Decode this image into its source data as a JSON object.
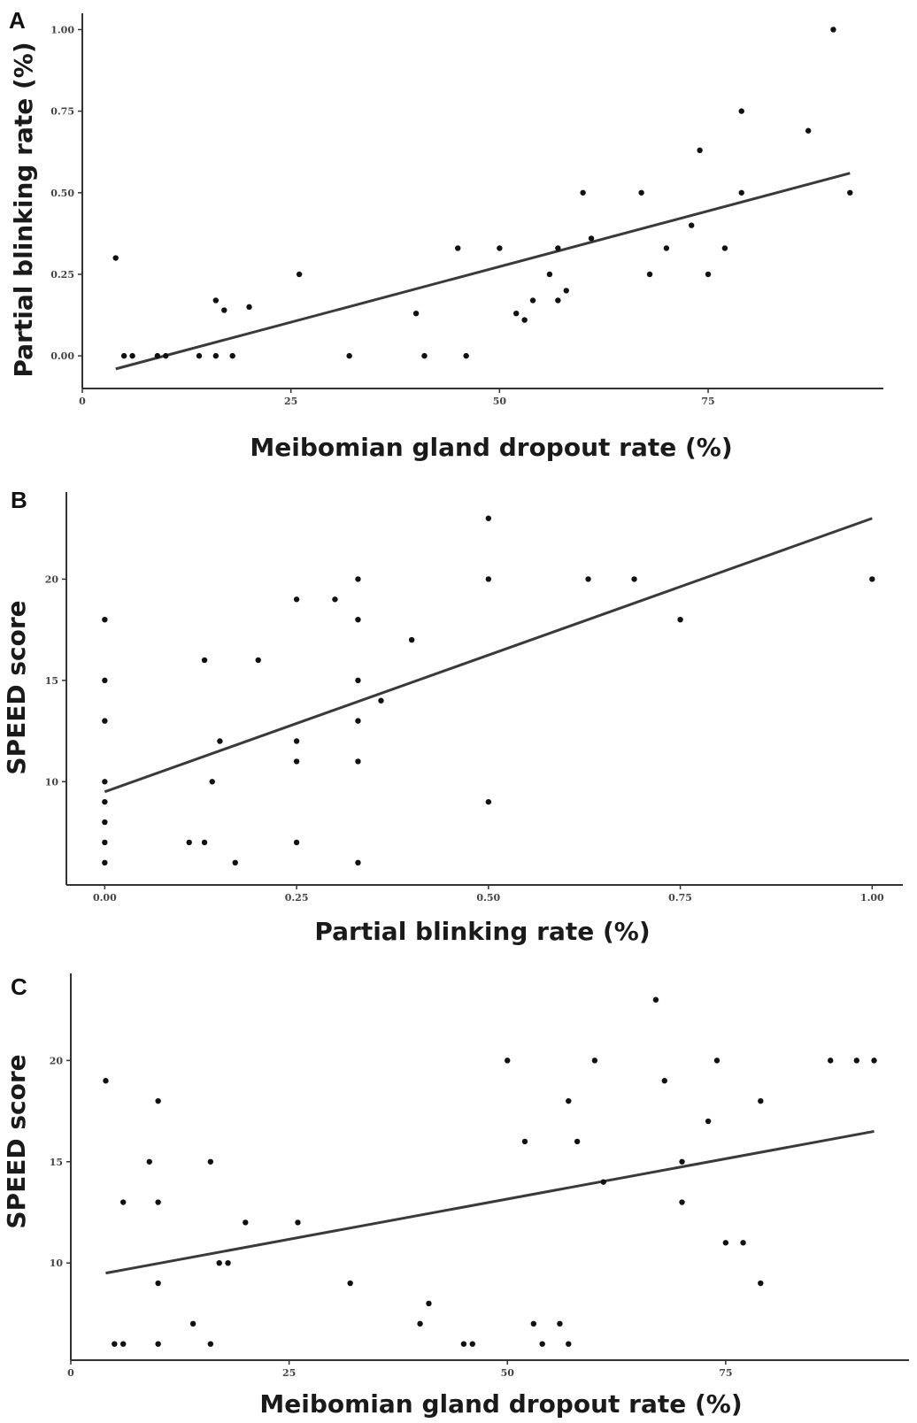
{
  "chart_data": [
    {
      "panel": "A",
      "type": "scatter",
      "xlabel": "Meibomian gland dropout rate (%)",
      "ylabel": "Partial blinking rate (%)",
      "xlim": [
        0,
        96
      ],
      "ylim": [
        -0.1,
        1.05
      ],
      "xticks": [
        0,
        25,
        50,
        75
      ],
      "xtick_labels": [
        "0",
        "25",
        "50",
        "75"
      ],
      "yticks": [
        0,
        0.25,
        0.5,
        0.75,
        1.0
      ],
      "ytick_labels": [
        "0.00",
        "0.25",
        "0.50",
        "0.75",
        "1.00"
      ],
      "grid": false,
      "points": [
        [
          4,
          0.3
        ],
        [
          5,
          0.0
        ],
        [
          6,
          0.0
        ],
        [
          9,
          0.0
        ],
        [
          10,
          0.0
        ],
        [
          14,
          0.0
        ],
        [
          16,
          0.0
        ],
        [
          16,
          0.17
        ],
        [
          17,
          0.14
        ],
        [
          18,
          0.0
        ],
        [
          20,
          0.15
        ],
        [
          26,
          0.25
        ],
        [
          32,
          0.0
        ],
        [
          40,
          0.13
        ],
        [
          41,
          0.0
        ],
        [
          45,
          0.33
        ],
        [
          46,
          0.0
        ],
        [
          50,
          0.33
        ],
        [
          52,
          0.13
        ],
        [
          53,
          0.11
        ],
        [
          54,
          0.17
        ],
        [
          56,
          0.25
        ],
        [
          57,
          0.33
        ],
        [
          57,
          0.17
        ],
        [
          58,
          0.2
        ],
        [
          60,
          0.5
        ],
        [
          61,
          0.36
        ],
        [
          67,
          0.5
        ],
        [
          68,
          0.25
        ],
        [
          70,
          0.33
        ],
        [
          73,
          0.4
        ],
        [
          74,
          0.63
        ],
        [
          75,
          0.25
        ],
        [
          77,
          0.33
        ],
        [
          79,
          0.5
        ],
        [
          79,
          0.75
        ],
        [
          87,
          0.69
        ],
        [
          90,
          1.0
        ],
        [
          92,
          0.5
        ]
      ],
      "trend": {
        "x": [
          4,
          92
        ],
        "y": [
          -0.04,
          0.56
        ]
      }
    },
    {
      "panel": "B",
      "type": "scatter",
      "xlabel": "Partial blinking rate (%)",
      "ylabel": "SPEED score",
      "xlim": [
        -0.05,
        1.04
      ],
      "ylim": [
        4.9,
        24.3
      ],
      "xticks": [
        0,
        0.25,
        0.5,
        0.75,
        1.0
      ],
      "xtick_labels": [
        "0.00",
        "0.25",
        "0.50",
        "0.75",
        "1.00"
      ],
      "yticks": [
        10,
        15,
        20
      ],
      "ytick_labels": [
        "10",
        "15",
        "20"
      ],
      "grid": false,
      "points": [
        [
          0,
          18
        ],
        [
          0,
          15
        ],
        [
          0,
          13
        ],
        [
          0,
          10
        ],
        [
          0,
          9
        ],
        [
          0,
          8
        ],
        [
          0,
          7
        ],
        [
          0,
          6
        ],
        [
          0.11,
          7
        ],
        [
          0.13,
          7
        ],
        [
          0.13,
          16
        ],
        [
          0.14,
          10
        ],
        [
          0.15,
          12
        ],
        [
          0.17,
          6
        ],
        [
          0.2,
          16
        ],
        [
          0.25,
          19
        ],
        [
          0.25,
          12
        ],
        [
          0.25,
          11
        ],
        [
          0.25,
          7
        ],
        [
          0.3,
          19
        ],
        [
          0.33,
          20
        ],
        [
          0.33,
          18
        ],
        [
          0.33,
          15
        ],
        [
          0.33,
          13
        ],
        [
          0.33,
          11
        ],
        [
          0.33,
          6
        ],
        [
          0.36,
          14
        ],
        [
          0.4,
          17
        ],
        [
          0.5,
          23
        ],
        [
          0.5,
          20
        ],
        [
          0.5,
          9
        ],
        [
          0.63,
          20
        ],
        [
          0.69,
          20
        ],
        [
          0.75,
          18
        ],
        [
          1.0,
          20
        ]
      ],
      "trend": {
        "x": [
          0,
          1.0
        ],
        "y": [
          9.5,
          23.0
        ]
      }
    },
    {
      "panel": "C",
      "type": "scatter",
      "xlabel": "Meibomian gland dropout rate (%)",
      "ylabel": "SPEED score",
      "xlim": [
        0,
        96
      ],
      "ylim": [
        5.2,
        24.3
      ],
      "xticks": [
        0,
        25,
        50,
        75
      ],
      "xtick_labels": [
        "0",
        "25",
        "50",
        "75"
      ],
      "yticks": [
        10,
        15,
        20
      ],
      "ytick_labels": [
        "10",
        "15",
        "20"
      ],
      "grid": false,
      "points": [
        [
          4,
          19
        ],
        [
          5,
          6
        ],
        [
          6,
          6
        ],
        [
          6,
          13
        ],
        [
          9,
          15
        ],
        [
          10,
          18
        ],
        [
          10,
          13
        ],
        [
          10,
          9
        ],
        [
          10,
          6
        ],
        [
          14,
          7
        ],
        [
          16,
          15
        ],
        [
          16,
          6
        ],
        [
          17,
          10
        ],
        [
          18,
          10
        ],
        [
          20,
          12
        ],
        [
          26,
          12
        ],
        [
          32,
          9
        ],
        [
          40,
          7
        ],
        [
          41,
          8
        ],
        [
          45,
          6
        ],
        [
          46,
          6
        ],
        [
          50,
          20
        ],
        [
          52,
          16
        ],
        [
          53,
          7
        ],
        [
          54,
          6
        ],
        [
          56,
          7
        ],
        [
          57,
          18
        ],
        [
          57,
          6
        ],
        [
          58,
          16
        ],
        [
          60,
          20
        ],
        [
          61,
          14
        ],
        [
          67,
          23
        ],
        [
          68,
          19
        ],
        [
          70,
          15
        ],
        [
          70,
          13
        ],
        [
          73,
          17
        ],
        [
          74,
          20
        ],
        [
          75,
          11
        ],
        [
          77,
          11
        ],
        [
          79,
          18
        ],
        [
          79,
          9
        ],
        [
          87,
          20
        ],
        [
          90,
          20
        ],
        [
          92,
          20
        ]
      ],
      "trend": {
        "x": [
          4,
          92
        ],
        "y": [
          9.5,
          16.5
        ]
      }
    }
  ],
  "panels": [
    {
      "letter": "A"
    },
    {
      "letter": "B"
    },
    {
      "letter": "C"
    }
  ]
}
